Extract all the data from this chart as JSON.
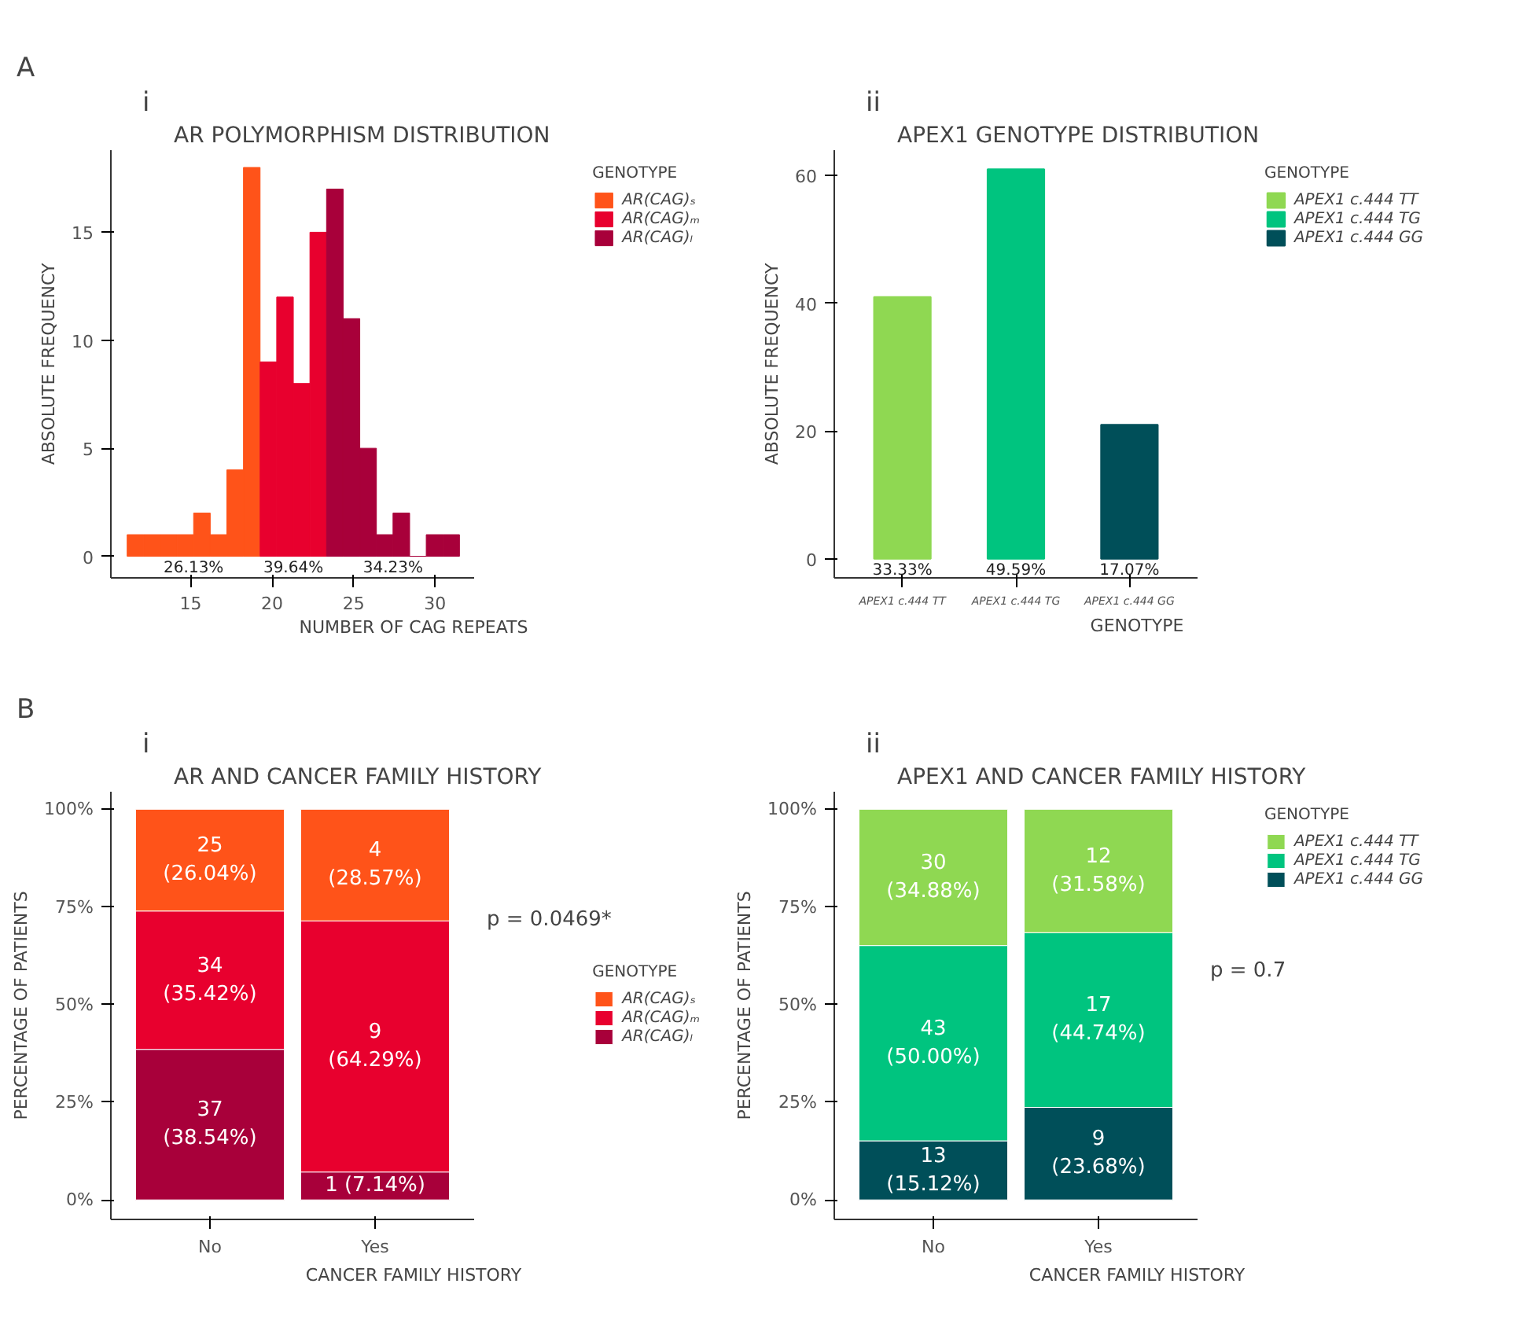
{
  "chart_data": [
    {
      "type": "histogram",
      "title": "AR POLYMORPHISM DISTRIBUTION",
      "xlabel": "NUMBER OF CAG REPEATS",
      "ylabel": "ABSOLUTE FREQUENCY",
      "legend_title": "GENOTYPE",
      "bins": [
        11.1,
        12.12,
        13.14,
        14.16,
        15.18,
        16.2,
        17.22,
        18.24,
        19.26,
        20.28,
        21.3,
        22.32,
        23.34,
        24.36,
        25.38,
        26.4,
        27.42,
        28.44,
        29.46,
        30.48,
        31.5
      ],
      "series": [
        {
          "name": "AR(CAG)ₛ",
          "color": "#ff5319",
          "values": [
            1,
            1,
            1,
            1,
            2,
            1,
            4,
            18,
            null,
            null,
            null,
            null,
            null,
            null,
            null,
            null,
            null,
            null,
            null,
            null
          ]
        },
        {
          "name": "AR(CAG)ₘ",
          "color": "#e8002e",
          "values": [
            null,
            null,
            null,
            null,
            null,
            null,
            null,
            null,
            9,
            12,
            8,
            15,
            null,
            null,
            null,
            null,
            null,
            null,
            null,
            null
          ]
        },
        {
          "name": "AR(CAG)ₗ",
          "color": "#a8003a",
          "values": [
            null,
            null,
            null,
            null,
            null,
            null,
            null,
            null,
            null,
            null,
            null,
            null,
            17,
            11,
            5,
            1,
            2,
            0,
            1,
            1
          ]
        }
      ],
      "xlim": [
        10.1,
        32.4
      ],
      "xticks": [
        15,
        20,
        25,
        30
      ],
      "ylim": [
        -1.0,
        18.8
      ],
      "yticks": [
        0,
        5,
        10,
        15
      ],
      "grid": false,
      "legend": "top right",
      "annotations": [
        "A",
        "i",
        "26.13%",
        "39.64%",
        "34.23%"
      ]
    },
    {
      "type": "bar",
      "title": "APEX1 GENOTYPE DISTRIBUTION",
      "xlabel": "GENOTYPE",
      "ylabel": "ABSOLUTE FREQUENCY",
      "legend_title": "GENOTYPE",
      "categories": [
        "APEX1 c.444 TT",
        "APEX1 c.444 TG",
        "APEX1 c.444 GG"
      ],
      "series": [
        {
          "name": "APEX1 c.444 TT",
          "color": "#8fd852",
          "values": [
            41,
            null,
            null
          ]
        },
        {
          "name": "APEX1 c.444 TG",
          "color": "#00c47f",
          "values": [
            null,
            61,
            null
          ]
        },
        {
          "name": "APEX1 c.444 GG",
          "color": "#004f59",
          "values": [
            null,
            null,
            21
          ]
        }
      ],
      "ylim": [
        -3,
        64
      ],
      "yticks": [
        0,
        20,
        40,
        60
      ],
      "grid": false,
      "legend": "top right",
      "annotations": [
        "ii",
        "33.33%",
        "49.59%",
        "17.07%"
      ]
    },
    {
      "type": "bar",
      "stacked": true,
      "title": "AR AND CANCER FAMILY HISTORY",
      "xlabel": "CANCER FAMILY HISTORY",
      "ylabel": "PERCENTAGE OF PATIENTS",
      "legend_title": "GENOTYPE",
      "categories": [
        "No",
        "Yes"
      ],
      "series": [
        {
          "name": "AR(CAG)ₗ",
          "color": "#a8003a",
          "values": [
            38.54,
            7.14
          ],
          "value_labels": [
            "37\n(38.54%)",
            "1 (7.14%)"
          ]
        },
        {
          "name": "AR(CAG)ₘ",
          "color": "#e8002e",
          "values": [
            35.42,
            64.29
          ],
          "value_labels": [
            "34\n(35.42%)",
            "9\n(64.29%)"
          ]
        },
        {
          "name": "AR(CAG)ₛ",
          "color": "#ff5319",
          "values": [
            26.04,
            28.57
          ],
          "value_labels": [
            "25\n(26.04%)",
            "4\n(28.57%)"
          ]
        }
      ],
      "ylim": [
        -5,
        104.5
      ],
      "yticks": [
        {
          "value": 0,
          "label": "0%"
        },
        {
          "value": 25,
          "label": "25%"
        },
        {
          "value": 50,
          "label": "50%"
        },
        {
          "value": 75,
          "label": "75%"
        },
        {
          "value": 100,
          "label": "100%"
        }
      ],
      "grid": false,
      "legend": "right",
      "annotations": [
        "B",
        "i",
        "p = 0.0469*"
      ]
    },
    {
      "type": "bar",
      "stacked": true,
      "title": "APEX1 AND CANCER FAMILY HISTORY",
      "xlabel": "CANCER FAMILY HISTORY",
      "ylabel": "PERCENTAGE OF PATIENTS",
      "legend_title": "GENOTYPE",
      "categories": [
        "No",
        "Yes"
      ],
      "series": [
        {
          "name": "APEX1 c.444 GG",
          "color": "#004f59",
          "values": [
            15.12,
            23.68
          ],
          "value_labels": [
            "13\n(15.12%)",
            "9\n(23.68%)"
          ]
        },
        {
          "name": "APEX1 c.444 TG",
          "color": "#00c47f",
          "values": [
            50.0,
            44.74
          ],
          "value_labels": [
            "43\n(50.00%)",
            "17\n(44.74%)"
          ]
        },
        {
          "name": "APEX1 c.444 TT",
          "color": "#8fd852",
          "values": [
            34.88,
            31.58
          ],
          "value_labels": [
            "30\n(34.88%)",
            "12\n(31.58%)"
          ]
        }
      ],
      "ylim": [
        -5,
        104.5
      ],
      "yticks": [
        {
          "value": 0,
          "label": "0%"
        },
        {
          "value": 25,
          "label": "25%"
        },
        {
          "value": 50,
          "label": "50%"
        },
        {
          "value": 75,
          "label": "75%"
        },
        {
          "value": 100,
          "label": "100%"
        }
      ],
      "grid": false,
      "legend": "top right",
      "annotations": [
        "ii",
        "p = 0.7"
      ]
    }
  ]
}
